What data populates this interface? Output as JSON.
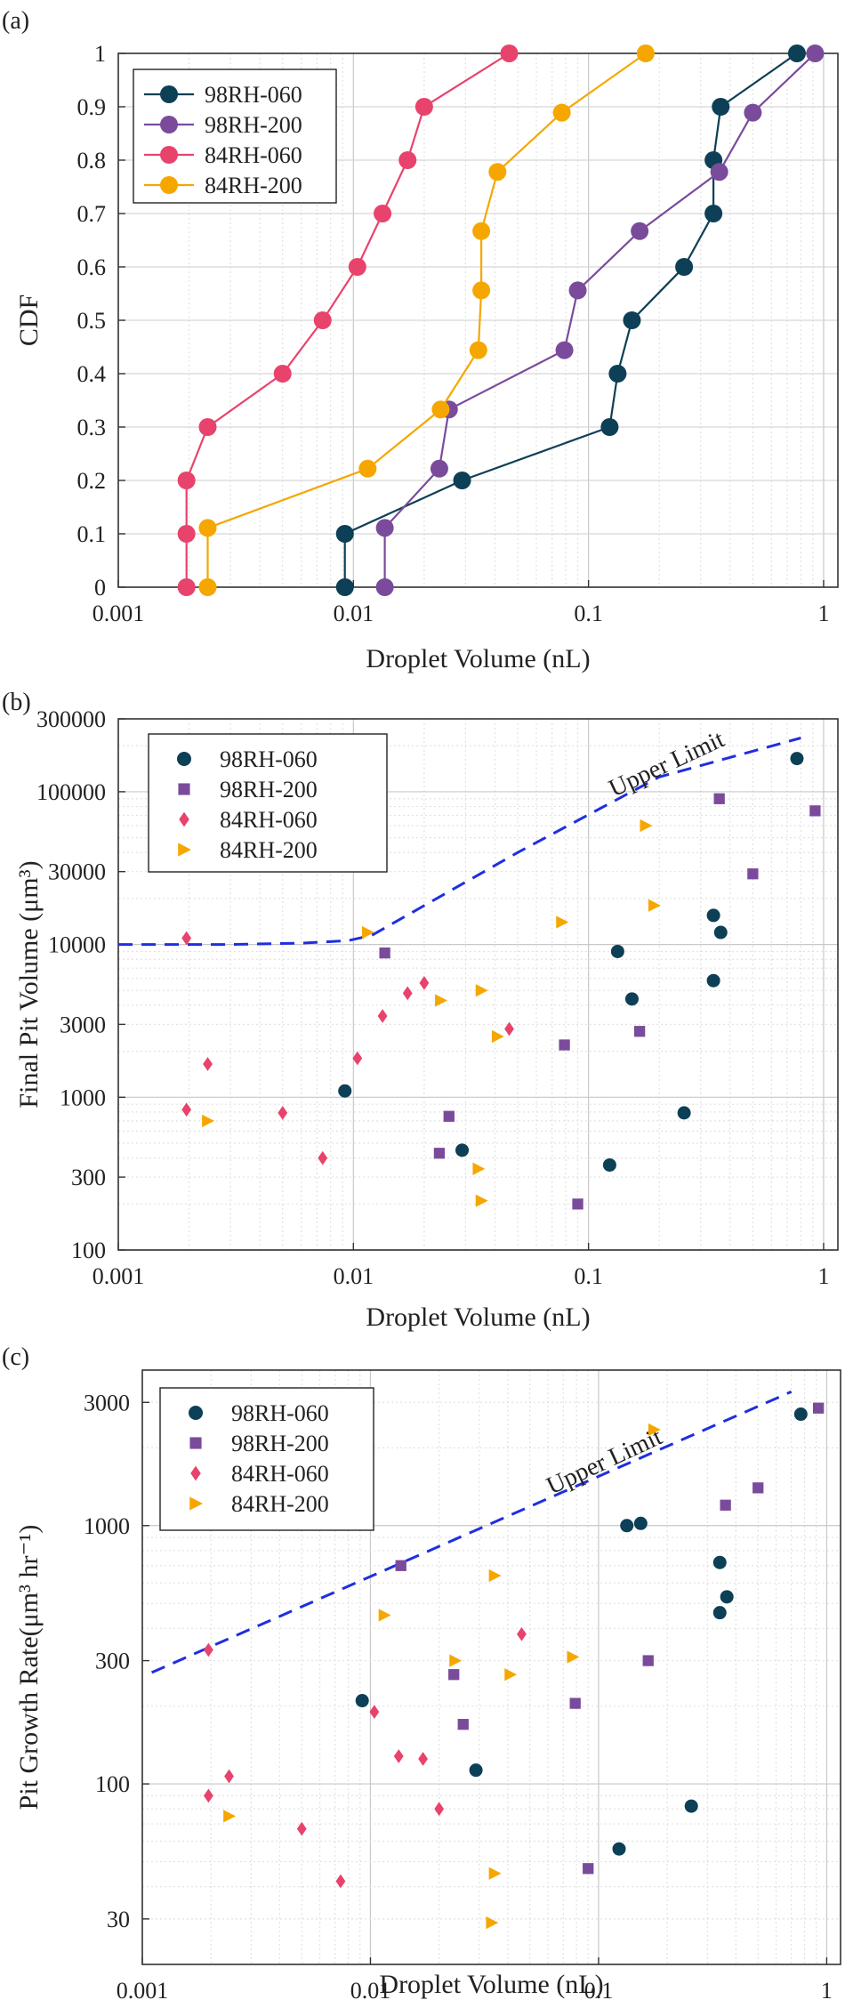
{
  "chart_data": [
    {
      "panel_label": "(a)",
      "type": "line",
      "xscale": "log",
      "xlabel": "Droplet Volume (nL)",
      "ylabel": "CDF",
      "xlim": [
        0.001,
        1.15
      ],
      "ylim": [
        0,
        1
      ],
      "x_ticks": [
        0.001,
        0.01,
        0.1,
        1
      ],
      "x_tick_labels": [
        "0.001",
        "0.01",
        "0.1",
        "1"
      ],
      "y_ticks": [
        0,
        0.1,
        0.2,
        0.3,
        0.4,
        0.5,
        0.6,
        0.7,
        0.8,
        0.9,
        1
      ],
      "y_tick_labels": [
        "0",
        "0.1",
        "0.2",
        "0.3",
        "0.4",
        "0.5",
        "0.6",
        "0.7",
        "0.8",
        "0.9",
        "1"
      ],
      "grid": true,
      "legend_position": "top-left",
      "series": [
        {
          "name": "98RH-060",
          "color": "#0d3f56",
          "marker": "circle",
          "points": [
            [
              0.0092,
              0
            ],
            [
              0.0092,
              0.1
            ],
            [
              0.029,
              0.2
            ],
            [
              0.123,
              0.3
            ],
            [
              0.133,
              0.4
            ],
            [
              0.153,
              0.5
            ],
            [
              0.255,
              0.6
            ],
            [
              0.34,
              0.7
            ],
            [
              0.34,
              0.8
            ],
            [
              0.365,
              0.9
            ],
            [
              0.77,
              1
            ]
          ]
        },
        {
          "name": "98RH-200",
          "color": "#7a4b9b",
          "marker": "circle",
          "points": [
            [
              0.0136,
              0
            ],
            [
              0.0136,
              0.111
            ],
            [
              0.0232,
              0.222
            ],
            [
              0.0255,
              0.333
            ],
            [
              0.079,
              0.444
            ],
            [
              0.09,
              0.556
            ],
            [
              0.165,
              0.667
            ],
            [
              0.36,
              0.778
            ],
            [
              0.5,
              0.889
            ],
            [
              0.92,
              1
            ]
          ]
        },
        {
          "name": "84RH-060",
          "color": "#e8436c",
          "marker": "circle",
          "points": [
            [
              0.00195,
              0
            ],
            [
              0.00195,
              0.1
            ],
            [
              0.00195,
              0.2
            ],
            [
              0.0024,
              0.3
            ],
            [
              0.005,
              0.4
            ],
            [
              0.0074,
              0.5
            ],
            [
              0.0104,
              0.6
            ],
            [
              0.0133,
              0.7
            ],
            [
              0.017,
              0.8
            ],
            [
              0.02,
              0.9
            ],
            [
              0.046,
              1
            ]
          ]
        },
        {
          "name": "84RH-200",
          "color": "#f5a700",
          "marker": "circle",
          "points": [
            [
              0.0024,
              0
            ],
            [
              0.0024,
              0.111
            ],
            [
              0.0115,
              0.222
            ],
            [
              0.0235,
              0.333
            ],
            [
              0.034,
              0.444
            ],
            [
              0.035,
              0.556
            ],
            [
              0.035,
              0.667
            ],
            [
              0.041,
              0.778
            ],
            [
              0.077,
              0.889
            ],
            [
              0.175,
              1
            ]
          ]
        }
      ]
    },
    {
      "panel_label": "(b)",
      "type": "scatter",
      "xscale": "log",
      "yscale": "log",
      "xlabel": "Droplet Volume (nL)",
      "ylabel": "Final Pit Volume (μm³)",
      "xlim": [
        0.001,
        1.15
      ],
      "ylim": [
        100,
        300000
      ],
      "x_ticks": [
        0.001,
        0.01,
        0.1,
        1
      ],
      "x_tick_labels": [
        "0.001",
        "0.01",
        "0.1",
        "1"
      ],
      "y_ticks": [
        100,
        300,
        1000,
        3000,
        10000,
        30000,
        100000,
        300000
      ],
      "y_tick_labels": [
        "100",
        "300",
        "1000",
        "3000",
        "10000",
        "30000",
        "100000",
        "300000"
      ],
      "grid": true,
      "legend_position": "top-left",
      "annotation": "Upper Limit",
      "upper_limit_line": [
        [
          0.001,
          10000
        ],
        [
          0.0015,
          10000
        ],
        [
          0.003,
          10000
        ],
        [
          0.006,
          10200
        ],
        [
          0.0095,
          10600
        ],
        [
          0.012,
          11500
        ],
        [
          0.05,
          40000
        ],
        [
          0.2,
          125000
        ],
        [
          0.8,
          225000
        ]
      ],
      "series": [
        {
          "name": "98RH-060",
          "color": "#0d3f56",
          "marker": "circle",
          "points": [
            [
              0.0092,
              1100
            ],
            [
              0.029,
              450
            ],
            [
              0.123,
              360
            ],
            [
              0.133,
              9000
            ],
            [
              0.153,
              4400
            ],
            [
              0.255,
              790
            ],
            [
              0.34,
              5800
            ],
            [
              0.34,
              15500
            ],
            [
              0.365,
              12000
            ],
            [
              0.77,
              165000
            ]
          ]
        },
        {
          "name": "98RH-200",
          "color": "#7a4b9b",
          "marker": "square",
          "points": [
            [
              0.0136,
              8800
            ],
            [
              0.0232,
              430
            ],
            [
              0.0255,
              750
            ],
            [
              0.079,
              2200
            ],
            [
              0.09,
              200
            ],
            [
              0.165,
              2700
            ],
            [
              0.36,
              90000
            ],
            [
              0.5,
              29000
            ],
            [
              0.92,
              75000
            ]
          ]
        },
        {
          "name": "84RH-060",
          "color": "#e8436c",
          "marker": "diamond",
          "points": [
            [
              0.00195,
              11000
            ],
            [
              0.00195,
              830
            ],
            [
              0.0024,
              1650
            ],
            [
              0.005,
              790
            ],
            [
              0.0074,
              400
            ],
            [
              0.0104,
              1800
            ],
            [
              0.0133,
              3400
            ],
            [
              0.017,
              4800
            ],
            [
              0.02,
              5600
            ],
            [
              0.046,
              2800
            ]
          ]
        },
        {
          "name": "84RH-200",
          "color": "#f5a700",
          "marker": "triangle-right",
          "points": [
            [
              0.0024,
              700
            ],
            [
              0.0115,
              12000
            ],
            [
              0.0235,
              4300
            ],
            [
              0.034,
              340
            ],
            [
              0.035,
              210
            ],
            [
              0.035,
              5000
            ],
            [
              0.041,
              2500
            ],
            [
              0.077,
              14000
            ],
            [
              0.175,
              60000
            ],
            [
              0.19,
              18000
            ]
          ]
        }
      ]
    },
    {
      "panel_label": "(c)",
      "type": "scatter",
      "xscale": "log",
      "yscale": "log",
      "xlabel": "Droplet Volume (nL)",
      "ylabel": "Pit Growth Rate(μm³ hr⁻¹)",
      "xlim": [
        0.001,
        1.15
      ],
      "ylim": [
        20,
        4000
      ],
      "x_ticks": [
        0.001,
        0.01,
        0.1,
        1
      ],
      "x_tick_labels": [
        "0.001",
        "0.01",
        "0.1",
        "1"
      ],
      "y_ticks": [
        30,
        100,
        300,
        1000,
        3000
      ],
      "y_tick_labels": [
        "30",
        "100",
        "300",
        "1000",
        "3000"
      ],
      "grid": true,
      "legend_position": "top-left",
      "annotation": "Upper Limit",
      "upper_limit_line": [
        [
          0.0011,
          270
        ],
        [
          0.7,
          3300
        ]
      ],
      "series": [
        {
          "name": "98RH-060",
          "color": "#0d3f56",
          "marker": "circle",
          "points": [
            [
              0.0092,
              210
            ],
            [
              0.029,
              113
            ],
            [
              0.123,
              56
            ],
            [
              0.133,
              1000
            ],
            [
              0.153,
              1020
            ],
            [
              0.255,
              82
            ],
            [
              0.34,
              460
            ],
            [
              0.34,
              720
            ],
            [
              0.365,
              530
            ],
            [
              0.77,
              2700
            ]
          ]
        },
        {
          "name": "98RH-200",
          "color": "#7a4b9b",
          "marker": "square",
          "points": [
            [
              0.0136,
              700
            ],
            [
              0.0232,
              265
            ],
            [
              0.0255,
              170
            ],
            [
              0.079,
              205
            ],
            [
              0.09,
              47
            ],
            [
              0.165,
              300
            ],
            [
              0.36,
              1200
            ],
            [
              0.5,
              1400
            ],
            [
              0.92,
              2850
            ]
          ]
        },
        {
          "name": "84RH-060",
          "color": "#e8436c",
          "marker": "diamond",
          "points": [
            [
              0.00195,
              90
            ],
            [
              0.00195,
              330
            ],
            [
              0.0024,
              107
            ],
            [
              0.005,
              67
            ],
            [
              0.0074,
              42
            ],
            [
              0.0104,
              190
            ],
            [
              0.0133,
              128
            ],
            [
              0.017,
              125
            ],
            [
              0.02,
              80
            ],
            [
              0.046,
              380
            ]
          ]
        },
        {
          "name": "84RH-200",
          "color": "#f5a700",
          "marker": "triangle-right",
          "points": [
            [
              0.0024,
              75
            ],
            [
              0.0115,
              450
            ],
            [
              0.0235,
              300
            ],
            [
              0.034,
              29
            ],
            [
              0.035,
              45
            ],
            [
              0.035,
              640
            ],
            [
              0.041,
              265
            ],
            [
              0.077,
              310
            ],
            [
              0.175,
              2350
            ]
          ]
        }
      ]
    }
  ]
}
